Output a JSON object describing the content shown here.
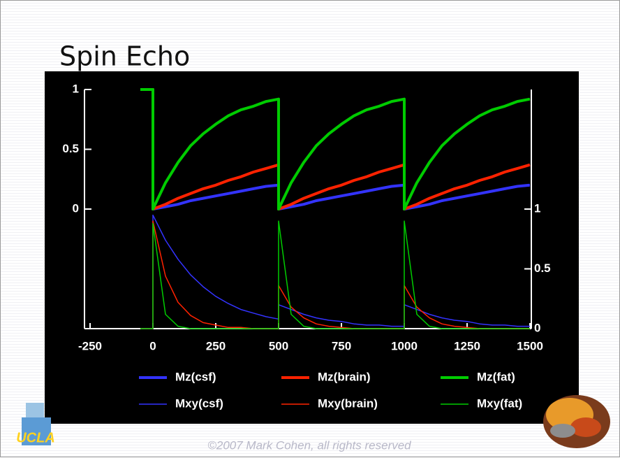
{
  "chart_data": {
    "type": "line",
    "title": "Spin Echo",
    "footer": "©2007 Mark Cohen, all rights reserved",
    "logo": "UCLA",
    "x": [
      -50,
      0,
      0,
      50,
      100,
      150,
      200,
      250,
      300,
      350,
      400,
      450,
      500,
      500,
      550,
      600,
      650,
      700,
      750,
      800,
      850,
      900,
      950,
      1000,
      1000,
      1050,
      1100,
      1150,
      1200,
      1250,
      1300,
      1350,
      1400,
      1450,
      1500
    ],
    "xlim": [
      -250,
      1500
    ],
    "xticks": [
      -250,
      0,
      250,
      500,
      750,
      1000,
      1250,
      1500
    ],
    "ylim": [
      -1,
      1
    ],
    "yticks": [
      0,
      0.5,
      1
    ],
    "y2lim": [
      0,
      2
    ],
    "y2ticks": [
      0,
      0.5,
      1
    ],
    "series": [
      {
        "name": "Mz(csf)",
        "color": "#3333ff",
        "values": [
          1,
          1,
          0,
          0.02,
          0.04,
          0.07,
          0.09,
          0.11,
          0.13,
          0.15,
          0.17,
          0.19,
          0.2,
          0,
          0.02,
          0.04,
          0.07,
          0.09,
          0.11,
          0.13,
          0.15,
          0.17,
          0.19,
          0.2,
          0,
          0.02,
          0.04,
          0.07,
          0.09,
          0.11,
          0.13,
          0.15,
          0.17,
          0.19,
          0.2
        ]
      },
      {
        "name": "Mz(brain)",
        "color": "#ff2200",
        "values": [
          1,
          1,
          0,
          0.04,
          0.09,
          0.13,
          0.17,
          0.2,
          0.24,
          0.27,
          0.31,
          0.34,
          0.37,
          0,
          0.04,
          0.09,
          0.13,
          0.17,
          0.2,
          0.24,
          0.27,
          0.31,
          0.34,
          0.37,
          0,
          0.04,
          0.09,
          0.13,
          0.17,
          0.2,
          0.24,
          0.27,
          0.31,
          0.34,
          0.37
        ]
      },
      {
        "name": "Mz(fat)",
        "color": "#00cc00",
        "values": [
          1,
          1,
          0,
          0.22,
          0.39,
          0.53,
          0.63,
          0.71,
          0.78,
          0.83,
          0.86,
          0.9,
          0.92,
          0,
          0.22,
          0.39,
          0.53,
          0.63,
          0.71,
          0.78,
          0.83,
          0.86,
          0.9,
          0.92,
          0,
          0.22,
          0.39,
          0.53,
          0.63,
          0.71,
          0.78,
          0.83,
          0.86,
          0.9,
          0.92
        ]
      },
      {
        "name": "Mxy(csf)",
        "color": "#3333ff",
        "axis": "y2",
        "values": [
          0,
          0,
          0.95,
          0.74,
          0.58,
          0.45,
          0.35,
          0.27,
          0.21,
          0.16,
          0.13,
          0.1,
          0.08,
          0.2,
          0.16,
          0.12,
          0.09,
          0.07,
          0.06,
          0.04,
          0.03,
          0.03,
          0.02,
          0.02,
          0.2,
          0.16,
          0.12,
          0.09,
          0.07,
          0.06,
          0.04,
          0.03,
          0.03,
          0.02,
          0.02
        ]
      },
      {
        "name": "Mxy(brain)",
        "color": "#ff2200",
        "axis": "y2",
        "values": [
          0,
          0,
          0.9,
          0.44,
          0.22,
          0.11,
          0.05,
          0.03,
          0.01,
          0.01,
          0,
          0,
          0,
          0.36,
          0.18,
          0.09,
          0.04,
          0.02,
          0.01,
          0,
          0,
          0,
          0,
          0,
          0.36,
          0.18,
          0.09,
          0.04,
          0.02,
          0.01,
          0,
          0,
          0,
          0,
          0
        ]
      },
      {
        "name": "Mxy(fat)",
        "color": "#00cc00",
        "axis": "y2",
        "values": [
          0,
          0,
          0.88,
          0.12,
          0.02,
          0,
          0,
          0,
          0,
          0,
          0,
          0,
          0,
          0.9,
          0.12,
          0.02,
          0,
          0,
          0,
          0,
          0,
          0,
          0,
          0,
          0.9,
          0.12,
          0.02,
          0,
          0,
          0,
          0,
          0,
          0,
          0,
          0
        ]
      }
    ],
    "series_widths": [
      4,
      4,
      4,
      1.5,
      1.5,
      1.5
    ]
  }
}
